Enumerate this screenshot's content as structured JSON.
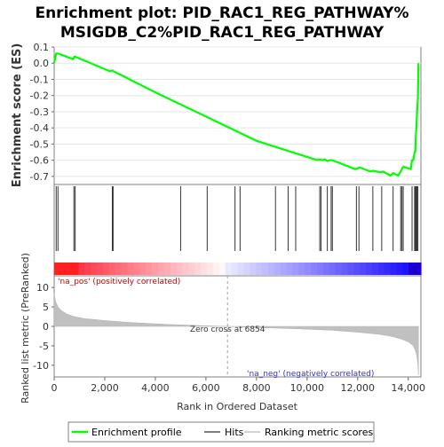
{
  "chart_data": {
    "type": "line",
    "title_line1": "Enrichment plot: PID_RAC1_REG_PATHWAY%",
    "title_line2": "MSIGDB_C2%PID_RAC1_REG_PATHWAY",
    "es_panel": {
      "ylabel": "Enrichment score (ES)",
      "ylim": [
        -0.75,
        0.1
      ],
      "yticks": [
        "0.1",
        "0.0",
        "-0.1",
        "-0.2",
        "-0.3",
        "-0.4",
        "-0.5",
        "-0.6",
        "-0.7"
      ],
      "ytick_values": [
        0.1,
        0.0,
        -0.1,
        -0.2,
        -0.3,
        -0.4,
        -0.5,
        -0.6,
        -0.7
      ],
      "grid": true,
      "series": {
        "color": "#00ff00",
        "x": [
          0,
          80,
          150,
          750,
          800,
          830,
          2200,
          2300,
          2350,
          4000,
          6000,
          8000,
          10400,
          10500,
          10600,
          10700,
          10800,
          10900,
          11000,
          11900,
          12000,
          12100,
          12500,
          12600,
          12900,
          13000,
          13300,
          13400,
          13600,
          13700,
          13750,
          13800,
          14100,
          14150,
          14200,
          14250,
          14280,
          14300,
          14320,
          14350,
          14380,
          14400
        ],
        "y": [
          0.0,
          0.06,
          0.06,
          0.025,
          0.04,
          0.04,
          -0.05,
          -0.045,
          -0.05,
          -0.18,
          -0.33,
          -0.48,
          -0.6,
          -0.595,
          -0.6,
          -0.595,
          -0.605,
          -0.6,
          -0.6,
          -0.655,
          -0.65,
          -0.645,
          -0.67,
          -0.665,
          -0.675,
          -0.67,
          -0.695,
          -0.68,
          -0.695,
          -0.67,
          -0.655,
          -0.64,
          -0.655,
          -0.6,
          -0.6,
          -0.55,
          -0.55,
          -0.45,
          -0.4,
          -0.3,
          -0.22,
          0.0
        ]
      }
    },
    "hits_panel": {
      "hits": [
        80,
        150,
        780,
        830,
        2300,
        2330,
        5000,
        6050,
        7150,
        7350,
        8750,
        9250,
        9550,
        10500,
        10550,
        10800,
        10950,
        11000,
        11950,
        12050,
        12600,
        12950,
        13400,
        13700,
        13750,
        13800,
        14150,
        14250,
        14280,
        14300,
        14320,
        14350,
        14380
      ]
    },
    "ranked_panel": {
      "ylabel": "Ranked list metric (PreRanked)",
      "ylim": [
        -13,
        13
      ],
      "yticks": [
        "10",
        "5",
        "0",
        "-5",
        "-10"
      ],
      "ytick_values": [
        10,
        5,
        0,
        -5,
        -10
      ],
      "pos_label": "'na_pos' (positively correlated)",
      "neg_label": "'na_neg' (negatively correlated)",
      "zero_cross_label": "Zero cross at 6854",
      "zero_cross": 6854,
      "profile_x": [
        0,
        50,
        150,
        300,
        500,
        800,
        1200,
        2000,
        3000,
        4500,
        6000,
        6854,
        8000,
        9500,
        11000,
        12000,
        12800,
        13300,
        13700,
        14000,
        14200,
        14300,
        14350,
        14380,
        14400
      ],
      "profile_y": [
        8.5,
        6.5,
        5,
        4,
        3.2,
        2.5,
        2,
        1.5,
        1,
        0.5,
        0.15,
        0,
        -0.3,
        -0.6,
        -1,
        -1.5,
        -2,
        -2.5,
        -3.2,
        -4,
        -5,
        -6.5,
        -8,
        -10,
        -12.5
      ]
    },
    "xaxis": {
      "xlabel": "Rank in Ordered Dataset",
      "xlim": [
        0,
        14500
      ],
      "xticks": [
        "0",
        "2,000",
        "4,000",
        "6,000",
        "8,000",
        "10,000",
        "12,000",
        "14,000"
      ],
      "xtick_values": [
        0,
        2000,
        4000,
        6000,
        8000,
        10000,
        12000,
        14000
      ]
    },
    "legend": {
      "placement": "bottom",
      "entries": [
        {
          "label": "Enrichment profile",
          "color": "#00ff00"
        },
        {
          "label": "Hits",
          "color": "#808080"
        },
        {
          "label": "Ranking metric scores",
          "color": "#d3d3d3"
        }
      ]
    }
  }
}
